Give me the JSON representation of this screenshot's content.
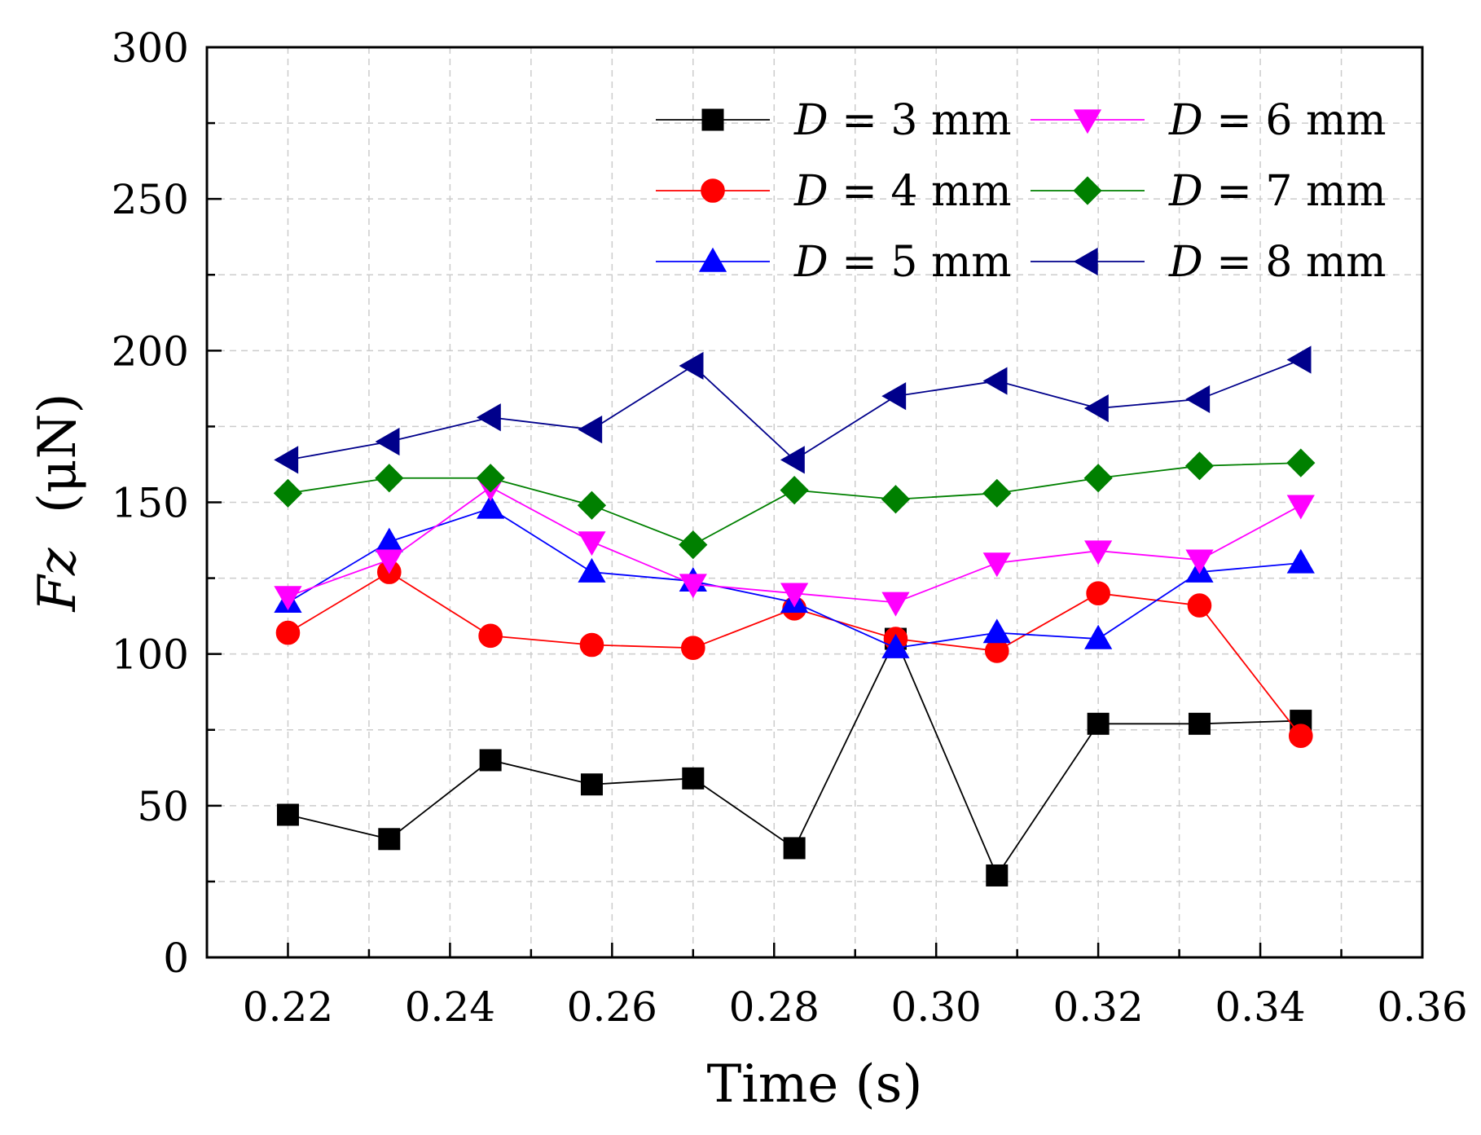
{
  "chart_data": {
    "type": "line",
    "title": "",
    "xlabel": "Time (s)",
    "ylabel_symbol": "Fz",
    "ylabel_unit": "(μN)",
    "xlim": [
      0.21,
      0.36
    ],
    "ylim": [
      0,
      300
    ],
    "x_ticks": [
      0.22,
      0.24,
      0.26,
      0.28,
      0.3,
      0.32,
      0.34,
      0.36
    ],
    "x_tick_labels": [
      "0.22",
      "0.24",
      "0.26",
      "0.28",
      "0.30",
      "0.32",
      "0.34",
      "0.36"
    ],
    "y_ticks": [
      0,
      50,
      100,
      150,
      200,
      250,
      300
    ],
    "y_tick_labels": [
      "0",
      "50",
      "100",
      "150",
      "200",
      "250",
      "300"
    ],
    "grid": true,
    "legend_position": "top-right",
    "x": [
      0.22,
      0.2325,
      0.245,
      0.2575,
      0.27,
      0.2825,
      0.295,
      0.3075,
      0.32,
      0.3325,
      0.345
    ],
    "series": [
      {
        "name": "D = 3 mm",
        "var": "D",
        "rest": " = 3 mm",
        "color": "#000000",
        "marker": "square",
        "values": [
          47,
          39,
          65,
          57,
          59,
          36,
          105,
          27,
          77,
          77,
          78
        ]
      },
      {
        "name": "D = 4 mm",
        "var": "D",
        "rest": " = 4 mm",
        "color": "#ff0000",
        "marker": "circle",
        "values": [
          107,
          127,
          106,
          103,
          102,
          115,
          105,
          101,
          120,
          116,
          73
        ]
      },
      {
        "name": "D = 5 mm",
        "var": "D",
        "rest": " = 5 mm",
        "color": "#0000ff",
        "marker": "triangle-up",
        "values": [
          117,
          137,
          148,
          127,
          124,
          117,
          102,
          107,
          105,
          127,
          130
        ]
      },
      {
        "name": "D = 6 mm",
        "var": "D",
        "rest": " = 6 mm",
        "color": "#ff00ff",
        "marker": "triangle-down",
        "values": [
          119,
          131,
          155,
          137,
          123,
          120,
          117,
          130,
          134,
          131,
          149
        ]
      },
      {
        "name": "D = 7 mm",
        "var": "D",
        "rest": " = 7 mm",
        "color": "#008000",
        "marker": "diamond",
        "values": [
          153,
          158,
          158,
          149,
          136,
          154,
          151,
          153,
          158,
          162,
          163
        ]
      },
      {
        "name": "D = 8 mm",
        "var": "D",
        "rest": " = 8 mm",
        "color": "#00008b",
        "marker": "triangle-left",
        "values": [
          164,
          170,
          178,
          174,
          195,
          164,
          185,
          190,
          181,
          184,
          197
        ]
      }
    ]
  }
}
